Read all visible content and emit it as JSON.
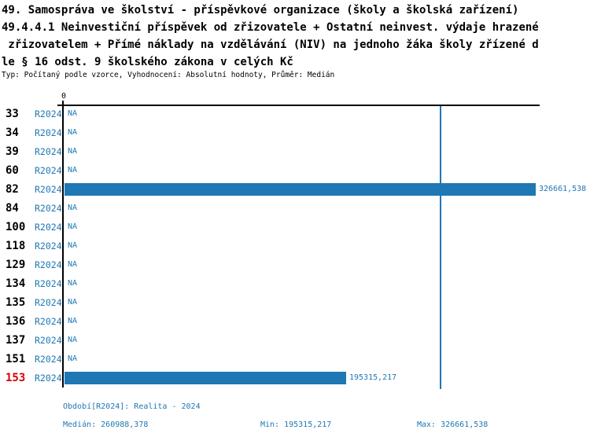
{
  "header": {
    "title_lines": [
      "49. Samospráva ve školství - příspěvkové organizace (školy a školská zařízení)",
      "49.4.4.1 Neinvestiční příspěvek od zřizovatele + Ostatní neinvest. výdaje hrazené",
      " zřizovatelem + Přímé náklady na vzdělávání (NIV) na jednoho žáka školy zřízené d",
      "le § 16 odst. 9 školského zákona v celých Kč"
    ],
    "subtitle": "Typ: Počítaný podle vzorce, Vyhodnocení: Absolutní hodnoty, Průměr: Medián"
  },
  "chart_data": {
    "type": "bar",
    "orientation": "horizontal",
    "title": "49.4.4.1 Neinvestiční příspěvek od zřizovatele + Ostatní neinvest. výdaje hrazené zřizovatelem + Přímé náklady na vzdělávání (NIV) na jednoho žáka školy zřízené dle § 16 odst. 9 školského zákona v celých Kč",
    "axis_zero_label": "0",
    "xlim": [
      0,
      326661.538
    ],
    "series_name": "R2024",
    "na_label": "NA",
    "categories": [
      "33",
      "34",
      "39",
      "60",
      "82",
      "84",
      "100",
      "118",
      "129",
      "134",
      "135",
      "136",
      "137",
      "151",
      "153"
    ],
    "rows": [
      {
        "id": "33",
        "period": "R2024",
        "value": null,
        "display": "NA",
        "highlight": false
      },
      {
        "id": "34",
        "period": "R2024",
        "value": null,
        "display": "NA",
        "highlight": false
      },
      {
        "id": "39",
        "period": "R2024",
        "value": null,
        "display": "NA",
        "highlight": false
      },
      {
        "id": "60",
        "period": "R2024",
        "value": null,
        "display": "NA",
        "highlight": false
      },
      {
        "id": "82",
        "period": "R2024",
        "value": 326661.538,
        "display": "326661,538",
        "highlight": false
      },
      {
        "id": "84",
        "period": "R2024",
        "value": null,
        "display": "NA",
        "highlight": false
      },
      {
        "id": "100",
        "period": "R2024",
        "value": null,
        "display": "NA",
        "highlight": false
      },
      {
        "id": "118",
        "period": "R2024",
        "value": null,
        "display": "NA",
        "highlight": false
      },
      {
        "id": "129",
        "period": "R2024",
        "value": null,
        "display": "NA",
        "highlight": false
      },
      {
        "id": "134",
        "period": "R2024",
        "value": null,
        "display": "NA",
        "highlight": false
      },
      {
        "id": "135",
        "period": "R2024",
        "value": null,
        "display": "NA",
        "highlight": false
      },
      {
        "id": "136",
        "period": "R2024",
        "value": null,
        "display": "NA",
        "highlight": false
      },
      {
        "id": "137",
        "period": "R2024",
        "value": null,
        "display": "NA",
        "highlight": false
      },
      {
        "id": "151",
        "period": "R2024",
        "value": null,
        "display": "NA",
        "highlight": false
      },
      {
        "id": "153",
        "period": "R2024",
        "value": 195315.217,
        "display": "195315,217",
        "highlight": true
      }
    ],
    "median": 260988.378,
    "min": 195315.217,
    "max": 326661.538,
    "colors": {
      "bar": "#1f77b4",
      "median_line": "#1f77b4",
      "blue_text": "#1f77b4",
      "highlight_row_id": "#d40000",
      "axis": "#000000"
    }
  },
  "footer": {
    "period_line": "Období[R2024]: Realita - 2024",
    "median_label": "Medián: 260988,378",
    "min_label": "Min: 195315,217",
    "max_label": "Max: 326661,538"
  }
}
